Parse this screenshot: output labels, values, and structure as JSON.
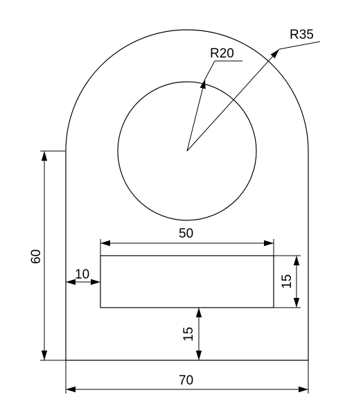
{
  "drawing": {
    "dimensions": {
      "radius_outer": "R35",
      "radius_inner": "R20",
      "slot_width": "50",
      "slot_height": "15",
      "slot_offset": "10",
      "slot_base_gap": "15",
      "height": "60",
      "width": "70"
    },
    "colors": {
      "line": "#000000",
      "background": "#ffffff"
    }
  }
}
